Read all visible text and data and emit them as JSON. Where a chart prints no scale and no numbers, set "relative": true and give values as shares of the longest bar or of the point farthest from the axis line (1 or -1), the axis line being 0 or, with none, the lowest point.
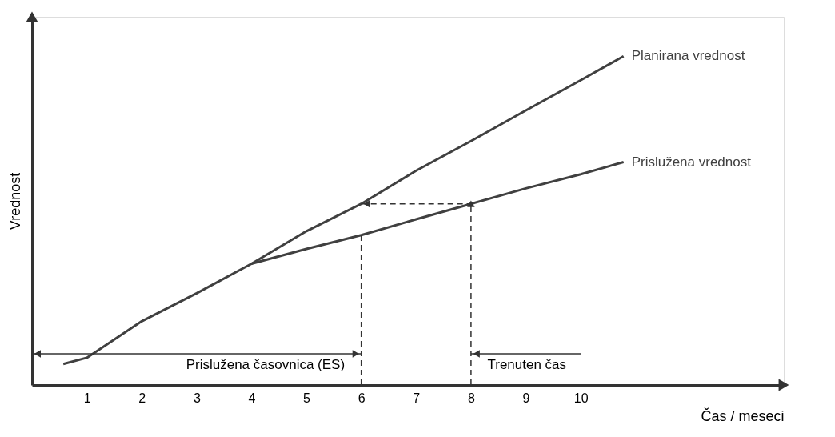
{
  "chart_data": {
    "type": "line",
    "relative": true,
    "ylabel": "Vrednost",
    "xlabel": "Čas / meseci",
    "xlim": [
      0,
      13.7
    ],
    "xticks": [
      1,
      2,
      3,
      4,
      5,
      6,
      7,
      8,
      9,
      10
    ],
    "series": [
      {
        "name": "Planirana vrednost",
        "color": "#404040",
        "x": [
          0.57,
          1,
          2,
          3,
          4,
          5,
          6,
          7,
          8,
          9,
          10,
          10.78
        ],
        "values": [
          0.064,
          0.083,
          0.194,
          0.279,
          0.369,
          0.468,
          0.551,
          0.652,
          0.742,
          0.835,
          0.927,
          1.0
        ]
      },
      {
        "name": "Prislužena vrednost",
        "color": "#404040",
        "x": [
          4,
          5,
          6,
          7,
          8,
          9,
          10,
          10.78
        ],
        "values": [
          0.369,
          0.414,
          0.456,
          0.504,
          0.551,
          0.598,
          0.641,
          0.678
        ]
      }
    ],
    "ref_lines": [
      {
        "axis": "x",
        "value": 6,
        "label": "Prislužena časovnica (ES)",
        "line_style": "dashed"
      },
      {
        "axis": "x",
        "value": 8,
        "label": "Trenuten čas",
        "line_style": "dashed"
      }
    ],
    "legend": false,
    "grid": false,
    "line_style": "solid"
  }
}
